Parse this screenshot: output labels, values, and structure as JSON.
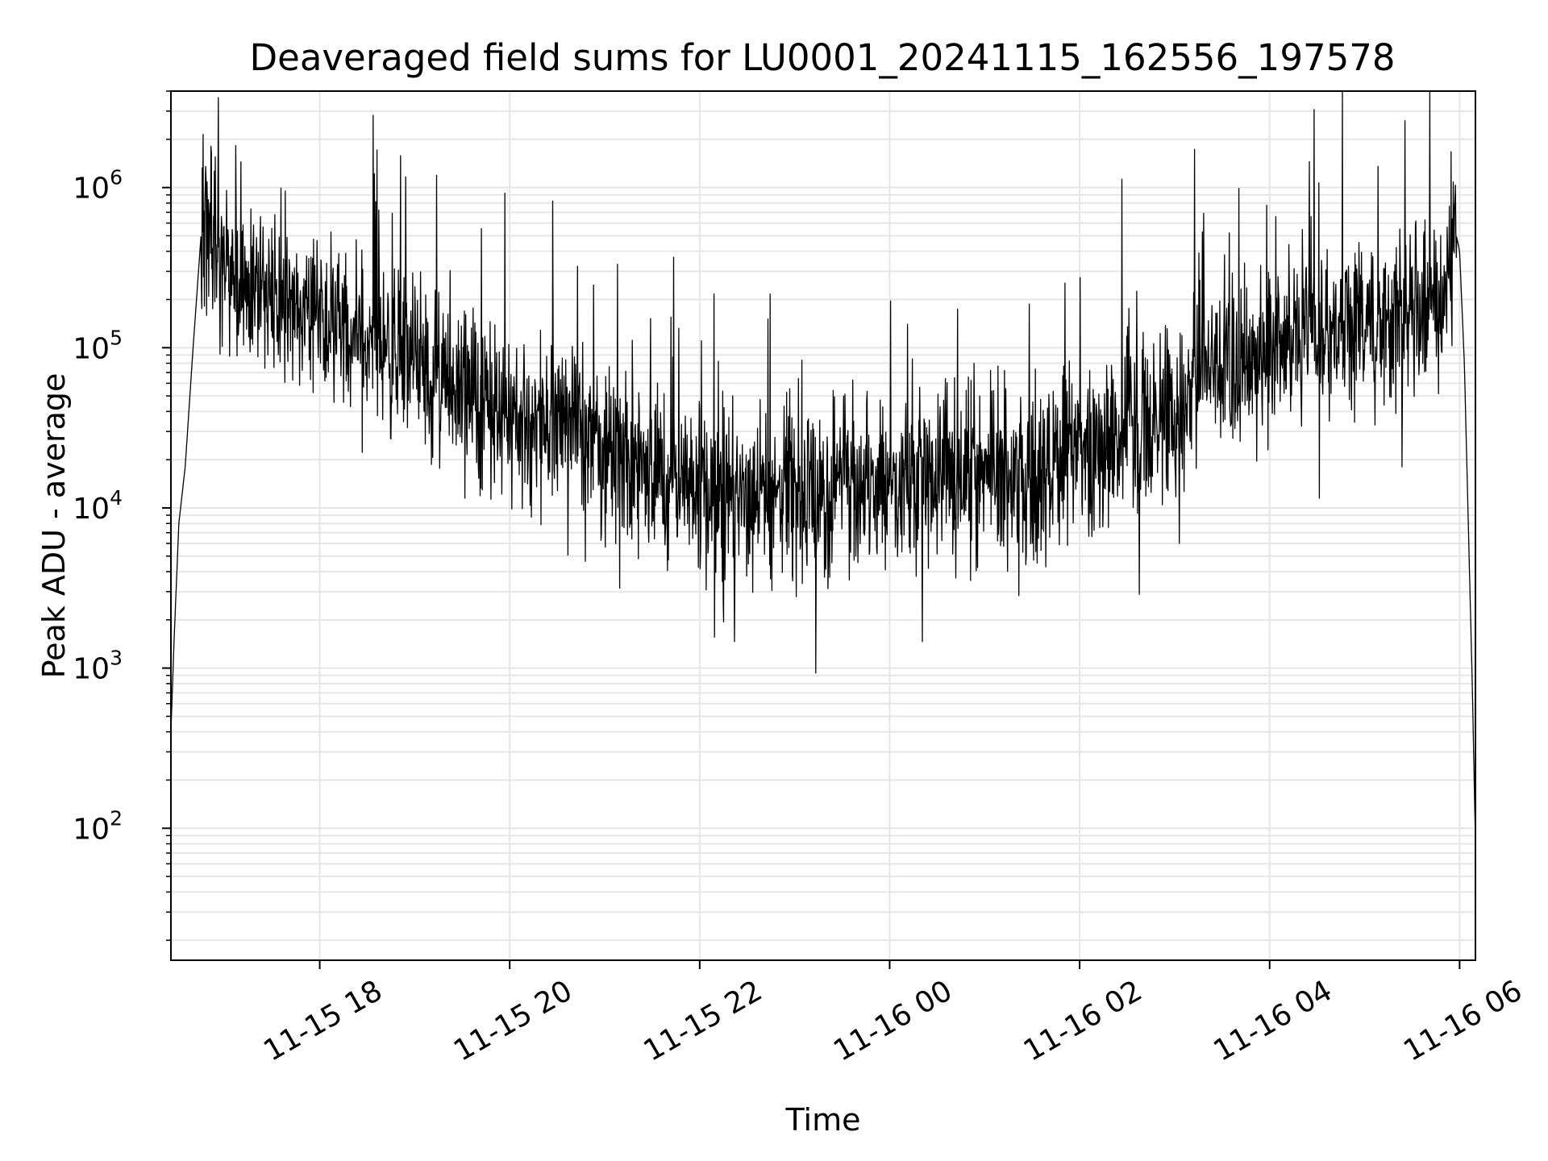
{
  "chart_data": {
    "type": "line",
    "title": "Deaveraged field sums for LU0001_20241115_162556_197578",
    "xlabel": "Time",
    "ylabel": "Peak ADU - average",
    "yscale": "log",
    "ylim": [
      15,
      4000000
    ],
    "xlim": [
      "2024-11-15 16:26",
      "2024-11-16 06:10"
    ],
    "grid": true,
    "grid_color": "#e6e6e6",
    "line_color": "#000000",
    "x_ticks": [
      {
        "value": "2024-11-15 18:00",
        "label": "11-15 18"
      },
      {
        "value": "2024-11-15 20:00",
        "label": "11-15 20"
      },
      {
        "value": "2024-11-15 22:00",
        "label": "11-15 22"
      },
      {
        "value": "2024-11-16 00:00",
        "label": "11-16 00"
      },
      {
        "value": "2024-11-16 02:00",
        "label": "11-16 02"
      },
      {
        "value": "2024-11-16 04:00",
        "label": "11-16 04"
      },
      {
        "value": "2024-11-16 06:00",
        "label": "11-16 06"
      }
    ],
    "y_ticks": [
      {
        "value": 100,
        "label": "10",
        "exp": "2"
      },
      {
        "value": 1000,
        "label": "10",
        "exp": "3"
      },
      {
        "value": 10000,
        "label": "10",
        "exp": "4"
      },
      {
        "value": 100000,
        "label": "10",
        "exp": "5"
      },
      {
        "value": 1000000,
        "label": "10",
        "exp": "6"
      }
    ],
    "series": [
      {
        "x": [
          "2024-11-15 16:26",
          "2024-11-15 16:28",
          "2024-11-15 16:31",
          "2024-11-15 16:35",
          "2024-11-15 16:40",
          "2024-11-15 16:45",
          "2024-11-15 16:50",
          "2024-11-15 16:55",
          "2024-11-15 17:00",
          "2024-11-15 17:10",
          "2024-11-15 17:20",
          "2024-11-15 17:30",
          "2024-11-15 17:45",
          "2024-11-15 18:00",
          "2024-11-15 18:20",
          "2024-11-15 18:40",
          "2024-11-15 19:00",
          "2024-11-15 19:20",
          "2024-11-15 19:40",
          "2024-11-15 20:00",
          "2024-11-15 20:20",
          "2024-11-15 20:40",
          "2024-11-15 21:00",
          "2024-11-15 21:20",
          "2024-11-15 21:40",
          "2024-11-15 22:00",
          "2024-11-15 22:20",
          "2024-11-15 22:40",
          "2024-11-15 23:00",
          "2024-11-15 23:20",
          "2024-11-15 23:40",
          "2024-11-16 00:00",
          "2024-11-16 00:20",
          "2024-11-16 00:40",
          "2024-11-16 01:00",
          "2024-11-16 01:20",
          "2024-11-16 01:40",
          "2024-11-16 02:00",
          "2024-11-16 02:20",
          "2024-11-16 02:40",
          "2024-11-16 03:00",
          "2024-11-16 03:20",
          "2024-11-16 03:40",
          "2024-11-16 04:00",
          "2024-11-16 04:20",
          "2024-11-16 04:40",
          "2024-11-16 05:00",
          "2024-11-16 05:20",
          "2024-11-16 05:40",
          "2024-11-16 05:50",
          "2024-11-16 05:55",
          "2024-11-16 05:58",
          "2024-11-16 06:00",
          "2024-11-16 06:03",
          "2024-11-16 06:06",
          "2024-11-16 06:08",
          "2024-11-16 06:10"
        ],
        "y": [
          400,
          1500,
          8000,
          18000,
          100000,
          500000,
          500000,
          400000,
          300000,
          200000,
          220000,
          200000,
          180000,
          150000,
          130000,
          110000,
          80000,
          60000,
          50000,
          40000,
          35000,
          30000,
          22000,
          18000,
          15000,
          13000,
          12000,
          11000,
          11000,
          12000,
          13000,
          14000,
          15000,
          15000,
          16000,
          17000,
          18000,
          20000,
          25000,
          35000,
          45000,
          65000,
          80000,
          100000,
          110000,
          120000,
          140000,
          160000,
          180000,
          250000,
          400000,
          500000,
          400000,
          80000,
          5000,
          800,
          80
        ]
      }
    ]
  }
}
